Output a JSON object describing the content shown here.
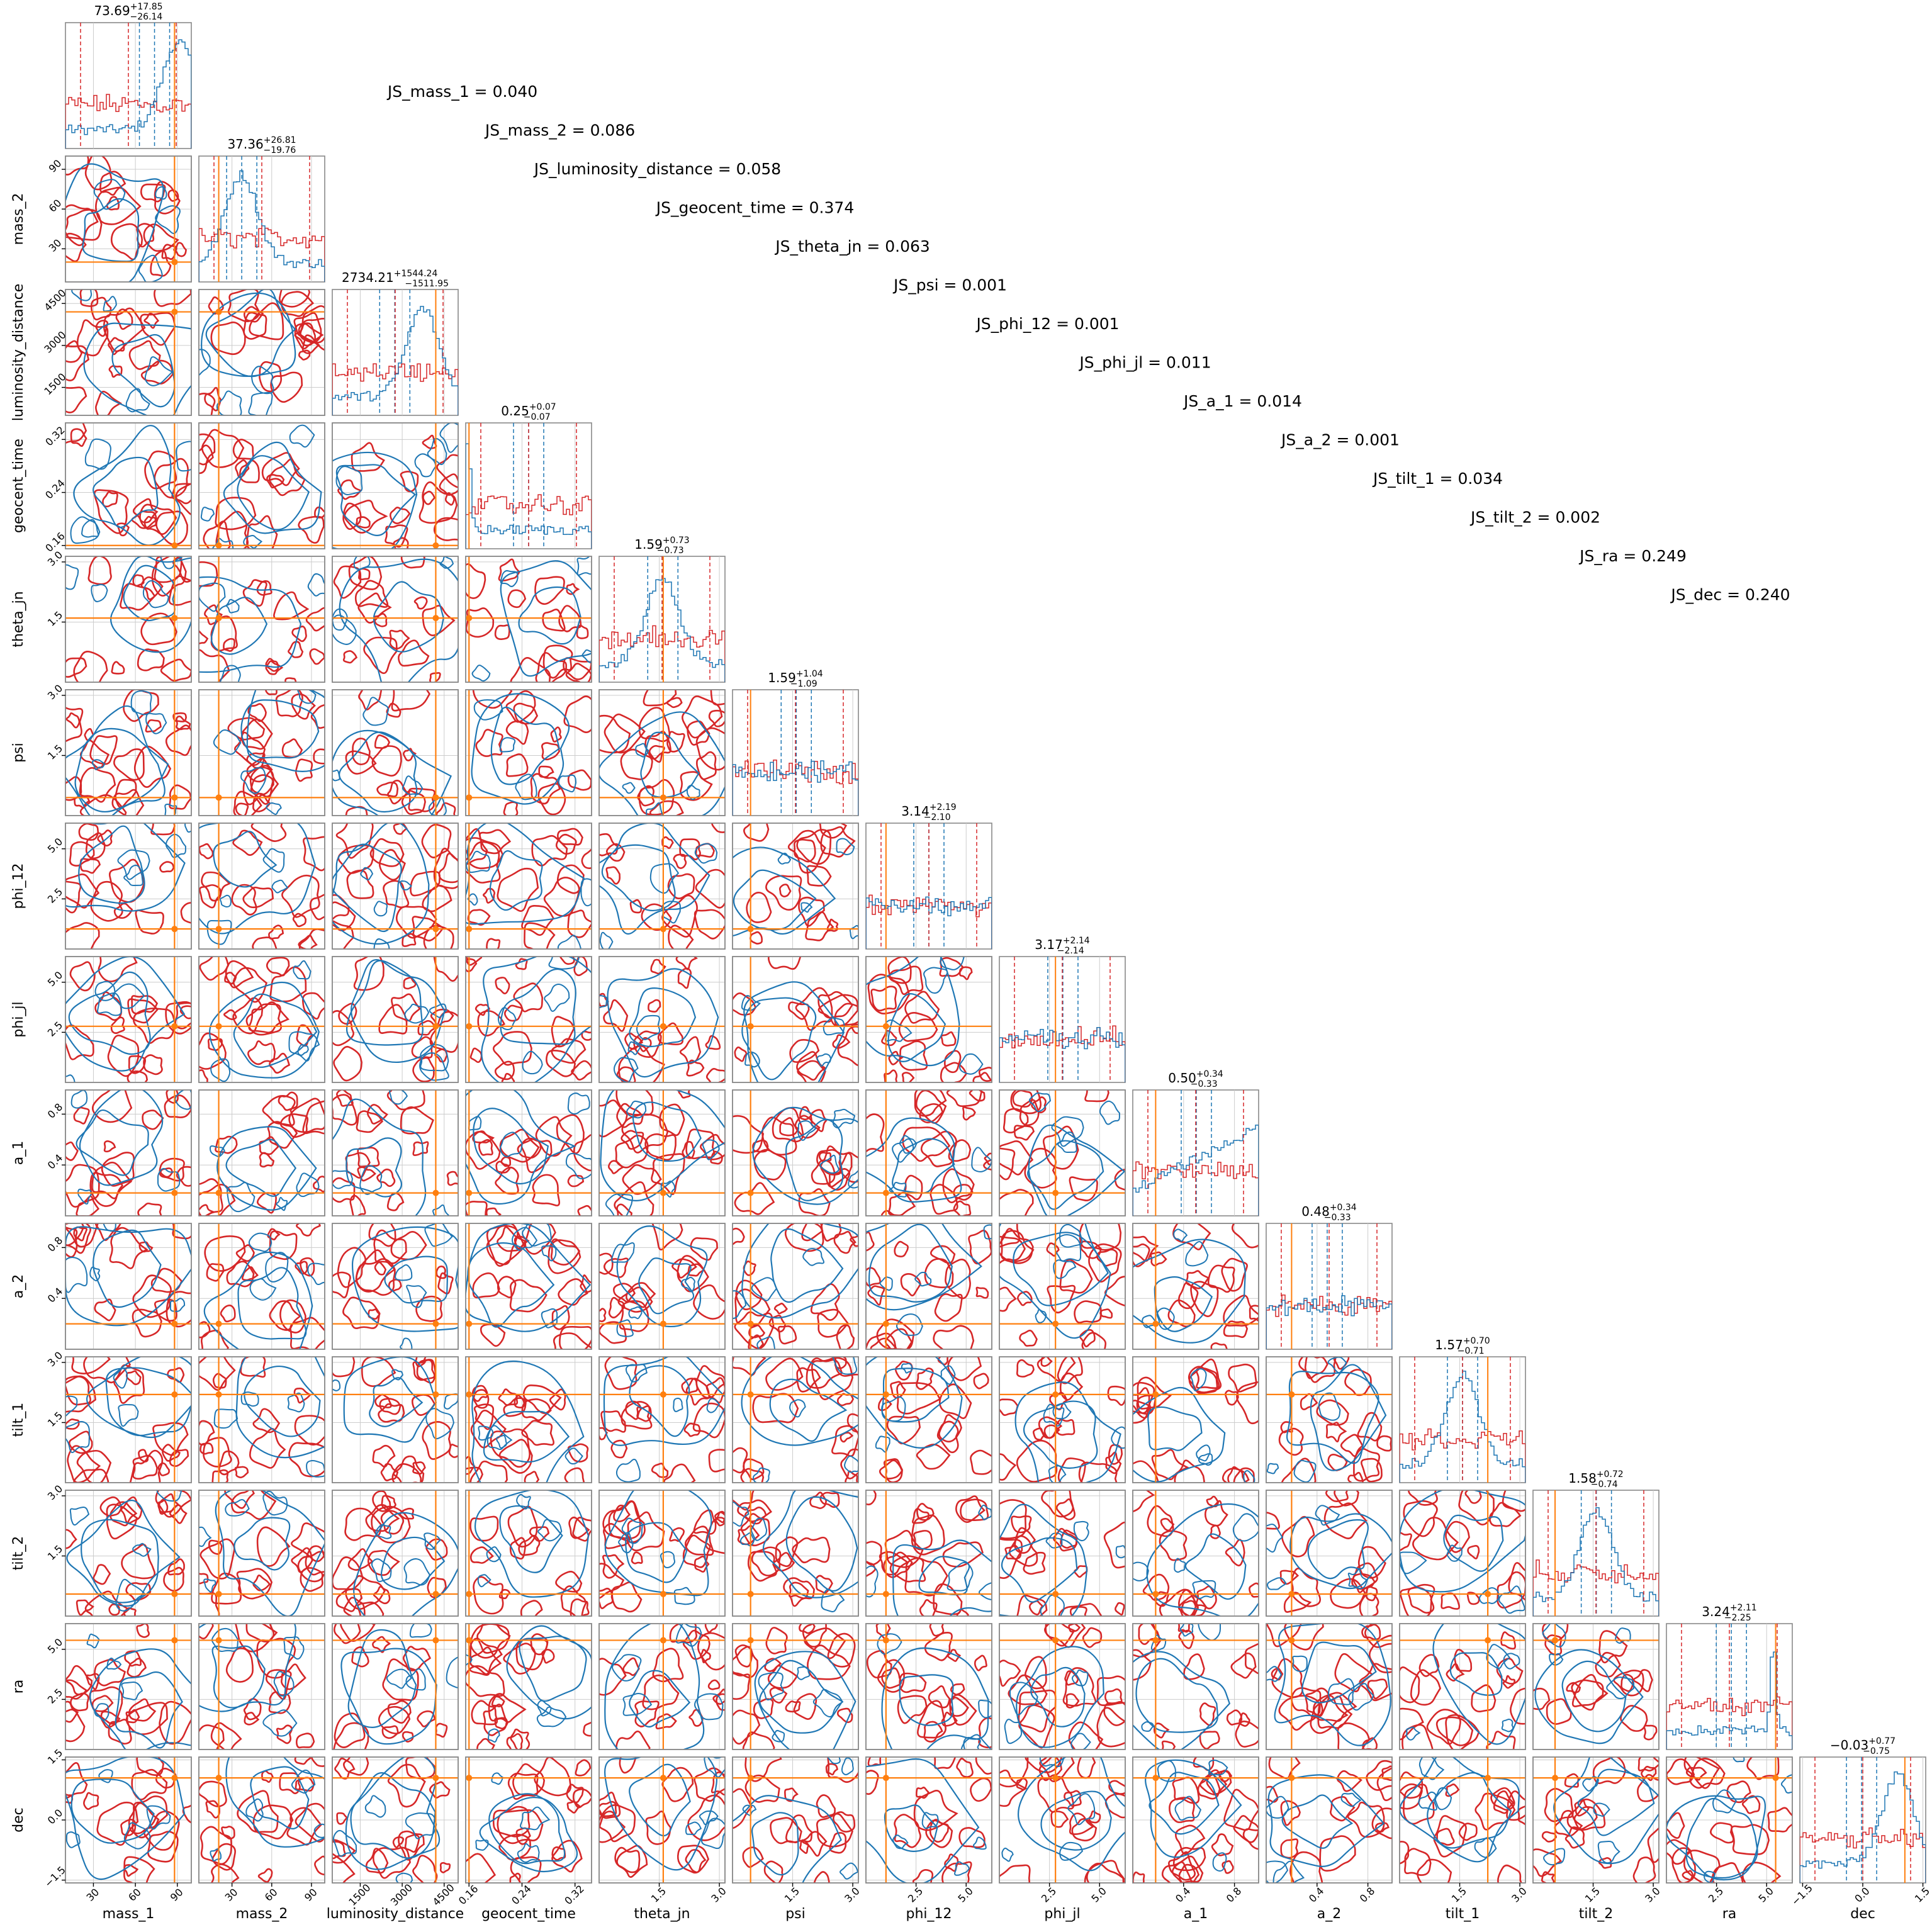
{
  "chart_data": {
    "type": "corner",
    "colors": {
      "posterior_a": "#1f77b4",
      "posterior_b": "#d62728",
      "truth": "#ff7f0e",
      "grid": "#cccccc",
      "frame": "#888888"
    },
    "parameters": [
      {
        "name": "mass_1",
        "median": "73.69",
        "plus": "+17.85",
        "minus": "−26.14",
        "range": [
          10,
          100
        ],
        "ticks": [
          "30",
          "60",
          "90"
        ],
        "truth": 88
      },
      {
        "name": "mass_2",
        "median": "37.36",
        "plus": "+26.81",
        "minus": "−19.76",
        "range": [
          5,
          100
        ],
        "ticks": [
          "30",
          "60",
          "90"
        ],
        "truth": 20
      },
      {
        "name": "luminosity_distance",
        "median": "2734.21",
        "plus": "+1544.24",
        "minus": "−1511.95",
        "range": [
          500,
          5000
        ],
        "ticks": [
          "1500",
          "3000",
          "4500"
        ],
        "truth": 4200
      },
      {
        "name": "geocent_time",
        "median": "0.25",
        "plus": "+0.07",
        "minus": "−0.07",
        "range": [
          0.155,
          0.345
        ],
        "ticks": [
          "0.16",
          "0.24",
          "0.32"
        ],
        "truth": 0.16
      },
      {
        "name": "theta_jn",
        "median": "1.59",
        "plus": "+0.73",
        "minus": "−0.73",
        "range": [
          0,
          3.14
        ],
        "ticks": [
          "1.5",
          "3.0"
        ],
        "truth": 1.6
      },
      {
        "name": "psi",
        "median": "1.59",
        "plus": "+1.04",
        "minus": "−1.09",
        "range": [
          0,
          3.14
        ],
        "ticks": [
          "1.5",
          "3.0"
        ],
        "truth": 0.45
      },
      {
        "name": "phi_12",
        "median": "3.14",
        "plus": "+2.19",
        "minus": "−2.10",
        "range": [
          0,
          6.28
        ],
        "ticks": [
          "2.5",
          "5.0"
        ],
        "truth": 1.0
      },
      {
        "name": "phi_jl",
        "median": "3.17",
        "plus": "+2.14",
        "minus": "−2.14",
        "range": [
          0,
          6.28
        ],
        "ticks": [
          "2.5",
          "5.0"
        ],
        "truth": 2.8
      },
      {
        "name": "a_1",
        "median": "0.50",
        "plus": "+0.34",
        "minus": "−0.33",
        "range": [
          0,
          0.99
        ],
        "ticks": [
          "0.4",
          "0.8"
        ],
        "truth": 0.18
      },
      {
        "name": "a_2",
        "median": "0.48",
        "plus": "+0.34",
        "minus": "−0.33",
        "range": [
          0,
          0.99
        ],
        "ticks": [
          "0.4",
          "0.8"
        ],
        "truth": 0.2
      },
      {
        "name": "tilt_1",
        "median": "1.57",
        "plus": "+0.70",
        "minus": "−0.71",
        "range": [
          0,
          3.14
        ],
        "ticks": [
          "1.5",
          "3.0"
        ],
        "truth": 2.2
      },
      {
        "name": "tilt_2",
        "median": "1.58",
        "plus": "+0.72",
        "minus": "−0.74",
        "range": [
          0,
          3.14
        ],
        "ticks": [
          "1.5",
          "3.0"
        ],
        "truth": 0.55
      },
      {
        "name": "ra",
        "median": "3.24",
        "plus": "+2.11",
        "minus": "−2.25",
        "range": [
          0,
          6.28
        ],
        "ticks": [
          "2.5",
          "5.0"
        ],
        "truth": 5.45
      },
      {
        "name": "dec",
        "median": "−0.03",
        "plus": "+0.77",
        "minus": "−0.75",
        "range": [
          -1.57,
          1.57
        ],
        "ticks": [
          "−1.5",
          "0.0",
          "1.5"
        ],
        "truth": 1.05
      }
    ],
    "js_annotations": [
      "JS_mass_1 = 0.040",
      "JS_mass_2 = 0.086",
      "JS_luminosity_distance = 0.058",
      "JS_geocent_time = 0.374",
      "JS_theta_jn = 0.063",
      "JS_psi = 0.001",
      "JS_phi_12 = 0.001",
      "JS_phi_jl = 0.011",
      "JS_a_1 = 0.014",
      "JS_a_2 = 0.001",
      "JS_tilt_1 = 0.034",
      "JS_tilt_2 = 0.002",
      "JS_ra = 0.249",
      "JS_dec = 0.240"
    ]
  }
}
